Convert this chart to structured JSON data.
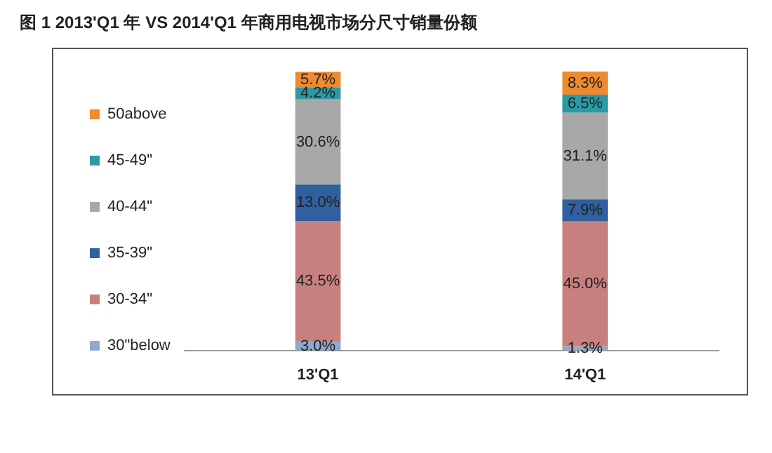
{
  "chart_data": {
    "type": "bar",
    "title": "图 1  2013'Q1 年 VS 2014'Q1 年商用电视市场分尺寸销量份额",
    "categories": [
      "13'Q1",
      "14'Q1"
    ],
    "stacked": true,
    "legend": "left",
    "series": [
      {
        "name": "30\"below",
        "color": "#8ea9d2",
        "values": [
          3.0,
          1.3
        ],
        "value_labels": [
          "3.0%",
          "1.3%"
        ]
      },
      {
        "name": "30-34\"",
        "color": "#c8807e",
        "values": [
          43.5,
          45.0
        ],
        "value_labels": [
          "43.5%",
          "45.0%"
        ]
      },
      {
        "name": "35-39\"",
        "color": "#30609f",
        "values": [
          13.0,
          7.9
        ],
        "value_labels": [
          "13.0%",
          "7.9%"
        ]
      },
      {
        "name": "40-44\"",
        "color": "#a8a8a8",
        "values": [
          30.6,
          31.1
        ],
        "value_labels": [
          "30.6%",
          "31.1%"
        ]
      },
      {
        "name": "45-49\"",
        "color": "#2b9aa6",
        "values": [
          4.2,
          6.5
        ],
        "value_labels": [
          "4.2%",
          "6.5%"
        ]
      },
      {
        "name": "50above",
        "color": "#ee8a30",
        "values": [
          5.7,
          8.3
        ],
        "value_labels": [
          "5.7%",
          "8.3%"
        ]
      }
    ]
  }
}
